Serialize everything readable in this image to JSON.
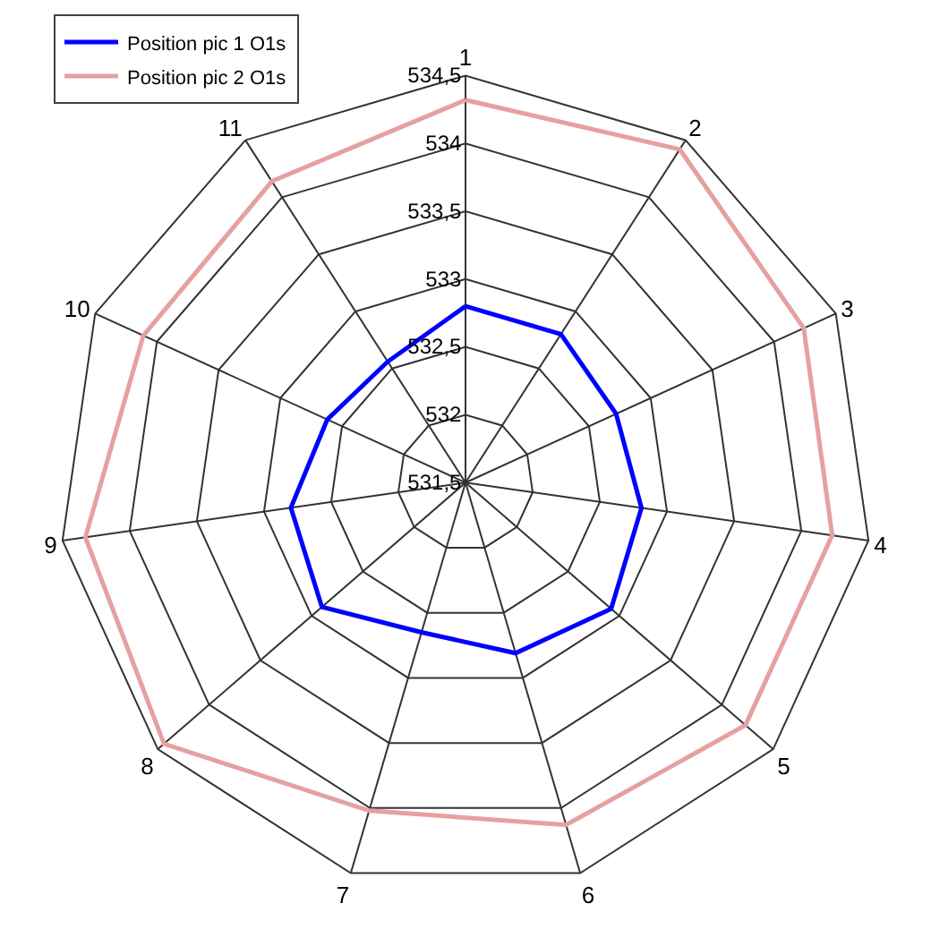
{
  "chart_data": {
    "type": "radar",
    "categories": [
      "1",
      "2",
      "3",
      "4",
      "5",
      "6",
      "7",
      "8",
      "9",
      "10",
      "11"
    ],
    "series": [
      {
        "name": "Position pic 1 O1s",
        "color": "#0000ff",
        "values": [
          532.8,
          532.8,
          532.72,
          532.81,
          532.92,
          532.81,
          532.65,
          532.9,
          532.8,
          532.62,
          532.56
        ]
      },
      {
        "name": "Position pic 2 O1s",
        "color": "#e6a0a0",
        "values": [
          534.32,
          534.42,
          534.24,
          534.23,
          534.23,
          534.13,
          534.02,
          534.44,
          534.33,
          534.11,
          534.14
        ]
      }
    ],
    "ylim": [
      531.5,
      534.5
    ],
    "yticks": [
      {
        "value": 531.5,
        "label": "531,5"
      },
      {
        "value": 532,
        "label": "532"
      },
      {
        "value": 532.5,
        "label": "532,5"
      },
      {
        "value": 533,
        "label": "533"
      },
      {
        "value": 533.5,
        "label": "533,5"
      },
      {
        "value": 534,
        "label": "534"
      },
      {
        "value": 534.5,
        "label": "534,5"
      }
    ],
    "grid": true,
    "legend": "top left",
    "marker": "none",
    "line_style": "solid"
  }
}
